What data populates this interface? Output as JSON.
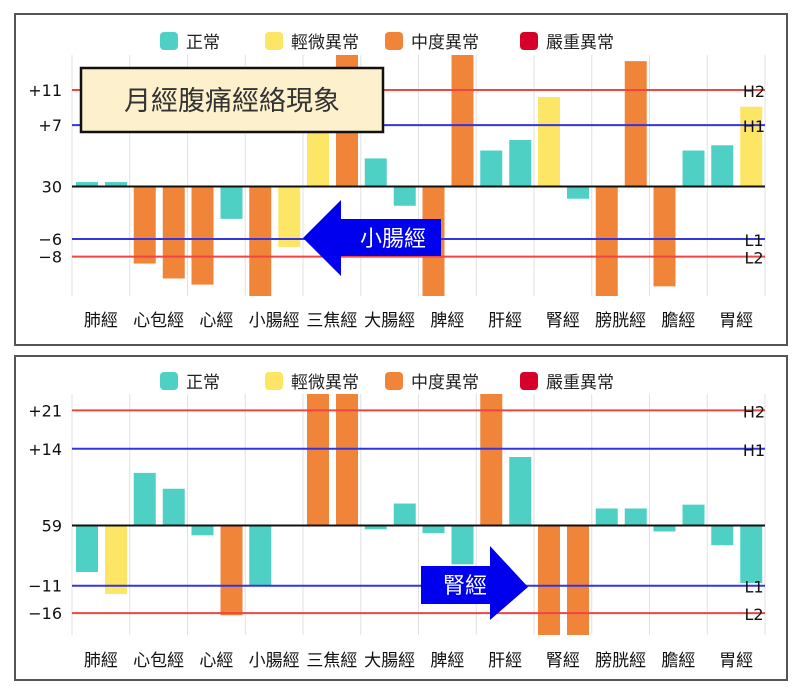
{
  "legend": [
    {
      "label": "正常",
      "color": "#4fd0c5"
    },
    {
      "label": "輕微異常",
      "color": "#fde566"
    },
    {
      "label": "中度異常",
      "color": "#f0853a"
    },
    {
      "label": "嚴重異常",
      "color": "#d6002a"
    }
  ],
  "chart_data": [
    {
      "type": "bar",
      "title": "月經腹痛經絡現象",
      "categories": [
        "肺經",
        "心包經",
        "心經",
        "小腸經",
        "三焦經",
        "大腸經",
        "脾經",
        "肝經",
        "腎經",
        "膀胱經",
        "膽經",
        "胃經"
      ],
      "baseline_label": "30",
      "ylim": [
        -12.5,
        15
      ],
      "grid": true,
      "legend_position": "top",
      "reference_lines": [
        {
          "value": 11,
          "left_label": "+11",
          "right_label": "H2",
          "color": "#f04545"
        },
        {
          "value": 7,
          "left_label": "+7",
          "right_label": "H1",
          "color": "#3535e0"
        },
        {
          "value": 0,
          "left_label": "30",
          "right_label": "",
          "color": "#111111"
        },
        {
          "value": -6,
          "left_label": "−6",
          "right_label": "L1",
          "color": "#3535e0"
        },
        {
          "value": -8,
          "left_label": "−8",
          "right_label": "L2",
          "color": "#f04545"
        }
      ],
      "series": [
        {
          "name": "left",
          "values": [
            0.5,
            -8.8,
            -11.2,
            -12.5,
            8,
            3.2,
            -12.5,
            4.1,
            10.2,
            -12.5,
            -11.4,
            4.7
          ],
          "levels": [
            "正常",
            "中度異常",
            "中度異常",
            "中度異常",
            "輕微異常",
            "正常",
            "中度異常",
            "正常",
            "輕微異常",
            "中度異常",
            "中度異常",
            "正常"
          ]
        },
        {
          "name": "right",
          "values": [
            0.5,
            -10.5,
            -3.7,
            -6.9,
            15,
            -2.2,
            15,
            5.3,
            -1.4,
            14.3,
            4.1,
            9.1
          ],
          "levels": [
            "正常",
            "中度異常",
            "正常",
            "輕微異常",
            "中度異常",
            "正常",
            "中度異常",
            "正常",
            "正常",
            "中度異常",
            "正常",
            "輕微異常"
          ]
        }
      ],
      "annotation": {
        "label": "小腸經",
        "direction": "left"
      }
    },
    {
      "type": "bar",
      "title": "",
      "categories": [
        "肺經",
        "心包經",
        "心經",
        "小腸經",
        "三焦經",
        "大腸經",
        "脾經",
        "肝經",
        "腎經",
        "膀胱經",
        "膽經",
        "胃經"
      ],
      "baseline_label": "59",
      "ylim": [
        -20,
        24
      ],
      "grid": true,
      "legend_position": "top",
      "reference_lines": [
        {
          "value": 21,
          "left_label": "+21",
          "right_label": "H2",
          "color": "#f04545"
        },
        {
          "value": 14,
          "left_label": "+14",
          "right_label": "H1",
          "color": "#3535e0"
        },
        {
          "value": 0,
          "left_label": "59",
          "right_label": "",
          "color": "#111111"
        },
        {
          "value": -11,
          "left_label": "−11",
          "right_label": "L1",
          "color": "#3535e0"
        },
        {
          "value": -16,
          "left_label": "−16",
          "right_label": "L2",
          "color": "#f04545"
        }
      ],
      "series": [
        {
          "name": "left",
          "values": [
            -8.5,
            9.6,
            -1.8,
            -11.1,
            24,
            -0.7,
            -1.4,
            24,
            -20,
            3.1,
            -1.1,
            -3.6
          ],
          "levels": [
            "正常",
            "正常",
            "正常",
            "正常",
            "中度異常",
            "正常",
            "正常",
            "中度異常",
            "中度異常",
            "正常",
            "正常",
            "正常"
          ]
        },
        {
          "name": "right",
          "values": [
            -12.5,
            6.7,
            -16.4,
            0,
            24,
            4,
            -7.1,
            12.5,
            -20,
            3.1,
            3.8,
            -10.5
          ],
          "levels": [
            "輕微異常",
            "正常",
            "中度異常",
            "正常",
            "中度異常",
            "正常",
            "正常",
            "正常",
            "中度異常",
            "正常",
            "正常",
            "正常"
          ]
        }
      ],
      "annotation": {
        "label": "腎經",
        "direction": "right"
      }
    }
  ]
}
